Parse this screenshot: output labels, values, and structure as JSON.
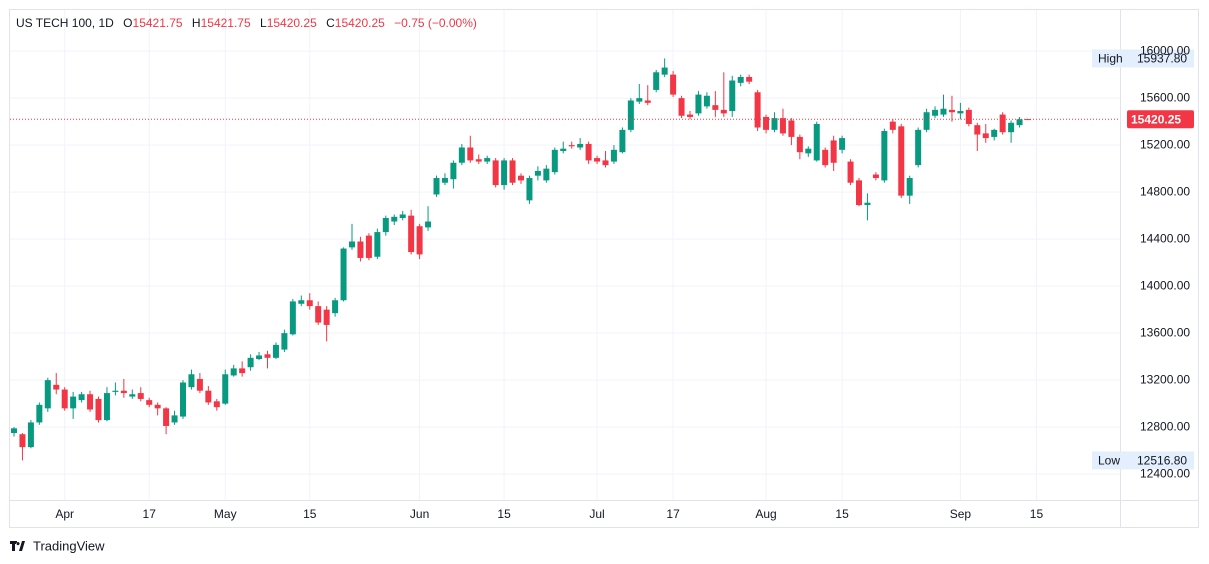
{
  "header": {
    "symbol": "US TECH 100, 1D",
    "fields": [
      {
        "label": "O",
        "value": "15421.75"
      },
      {
        "label": "H",
        "value": "15421.75"
      },
      {
        "label": "L",
        "value": "15420.25"
      },
      {
        "label": "C",
        "value": "15420.25"
      }
    ],
    "change": "−0.75 (−0.00%)"
  },
  "chart_data": {
    "type": "candlestick",
    "categories": [
      null,
      null,
      null,
      null,
      null,
      null,
      "Apr",
      null,
      null,
      null,
      null,
      null,
      null,
      null,
      null,
      null,
      "17",
      null,
      null,
      null,
      null,
      null,
      null,
      null,
      null,
      "May",
      null,
      null,
      null,
      null,
      null,
      null,
      null,
      null,
      null,
      "15",
      null,
      null,
      null,
      null,
      null,
      null,
      null,
      null,
      null,
      null,
      null,
      null,
      "Jun",
      null,
      null,
      null,
      null,
      null,
      null,
      null,
      null,
      null,
      "15",
      null,
      null,
      null,
      null,
      null,
      null,
      null,
      null,
      null,
      null,
      "Jul",
      null,
      null,
      null,
      null,
      null,
      null,
      null,
      null,
      "17",
      null,
      null,
      null,
      null,
      null,
      null,
      null,
      null,
      null,
      null,
      "Aug",
      null,
      null,
      null,
      null,
      null,
      null,
      null,
      null,
      "15",
      null,
      null,
      null,
      null,
      null,
      null,
      null,
      null,
      null,
      null,
      null,
      null,
      null,
      "Sep",
      null,
      null,
      null,
      null,
      null,
      null,
      null,
      null,
      "15"
    ],
    "candles": [
      [
        12750,
        12800,
        12720,
        12790
      ],
      [
        12740,
        12750,
        12516.8,
        12630
      ],
      [
        12630,
        12860,
        12620,
        12840
      ],
      [
        12840,
        13010,
        12820,
        12990
      ],
      [
        12960,
        13220,
        12930,
        13200
      ],
      [
        13160,
        13260,
        13080,
        13120
      ],
      [
        13120,
        13140,
        12940,
        12960
      ],
      [
        12960,
        13100,
        12870,
        13060
      ],
      [
        13030,
        13100,
        13010,
        13080
      ],
      [
        13080,
        13110,
        12930,
        12950
      ],
      [
        13040,
        13060,
        12840,
        12860
      ],
      [
        12860,
        13140,
        12850,
        13090
      ],
      [
        13100,
        13180,
        13070,
        13110
      ],
      [
        13110,
        13210,
        13050,
        13090
      ],
      [
        13060,
        13120,
        13040,
        13080
      ],
      [
        13090,
        13140,
        13020,
        13040
      ],
      [
        13030,
        13050,
        12970,
        12990
      ],
      [
        12990,
        13010,
        12900,
        12960
      ],
      [
        12960,
        12970,
        12740,
        12810
      ],
      [
        12840,
        12940,
        12820,
        12900
      ],
      [
        12890,
        13200,
        12870,
        13180
      ],
      [
        13140,
        13290,
        13120,
        13250
      ],
      [
        13210,
        13260,
        13090,
        13110
      ],
      [
        13110,
        13150,
        12990,
        13010
      ],
      [
        13020,
        13040,
        12940,
        12970
      ],
      [
        13000,
        13290,
        12990,
        13250
      ],
      [
        13240,
        13330,
        13230,
        13300
      ],
      [
        13300,
        13360,
        13230,
        13260
      ],
      [
        13310,
        13420,
        13280,
        13390
      ],
      [
        13380,
        13440,
        13370,
        13410
      ],
      [
        13420,
        13450,
        13300,
        13390
      ],
      [
        13390,
        13520,
        13380,
        13500
      ],
      [
        13460,
        13630,
        13440,
        13600
      ],
      [
        13590,
        13890,
        13580,
        13870
      ],
      [
        13850,
        13920,
        13830,
        13880
      ],
      [
        13880,
        13940,
        13800,
        13830
      ],
      [
        13830,
        13870,
        13670,
        13690
      ],
      [
        13800,
        13830,
        13530,
        13670
      ],
      [
        13770,
        13900,
        13740,
        13880
      ],
      [
        13880,
        14330,
        13870,
        14320
      ],
      [
        14330,
        14530,
        14310,
        14380
      ],
      [
        14380,
        14420,
        14210,
        14240
      ],
      [
        14430,
        14450,
        14220,
        14240
      ],
      [
        14250,
        14490,
        14230,
        14460
      ],
      [
        14460,
        14600,
        14430,
        14580
      ],
      [
        14550,
        14610,
        14520,
        14590
      ],
      [
        14580,
        14640,
        14560,
        14610
      ],
      [
        14600,
        14650,
        14270,
        14290
      ],
      [
        14510,
        14530,
        14230,
        14270
      ],
      [
        14500,
        14680,
        14470,
        14550
      ],
      [
        14780,
        14940,
        14760,
        14920
      ],
      [
        14880,
        14960,
        14860,
        14920
      ],
      [
        14910,
        15070,
        14830,
        15050
      ],
      [
        15050,
        15210,
        15030,
        15180
      ],
      [
        15180,
        15280,
        15050,
        15070
      ],
      [
        15080,
        15120,
        15040,
        15060
      ],
      [
        15060,
        15110,
        15040,
        15090
      ],
      [
        15070,
        15090,
        14840,
        14860
      ],
      [
        14860,
        15090,
        14820,
        15070
      ],
      [
        15070,
        15090,
        14860,
        14880
      ],
      [
        14940,
        14960,
        14870,
        14900
      ],
      [
        14730,
        14940,
        14700,
        14920
      ],
      [
        14940,
        15020,
        14900,
        14980
      ],
      [
        14900,
        15030,
        14880,
        15000
      ],
      [
        14970,
        15180,
        14950,
        15160
      ],
      [
        15150,
        15230,
        15130,
        15170
      ],
      [
        15200,
        15230,
        15170,
        15190
      ],
      [
        15180,
        15260,
        15160,
        15210
      ],
      [
        15210,
        15230,
        15040,
        15070
      ],
      [
        15090,
        15110,
        15040,
        15060
      ],
      [
        15070,
        15150,
        15010,
        15030
      ],
      [
        15060,
        15200,
        15040,
        15160
      ],
      [
        15140,
        15350,
        15130,
        15330
      ],
      [
        15330,
        15600,
        15310,
        15580
      ],
      [
        15570,
        15720,
        15550,
        15600
      ],
      [
        15580,
        15710,
        15540,
        15560
      ],
      [
        15670,
        15840,
        15650,
        15820
      ],
      [
        15800,
        15937.8,
        15780,
        15860
      ],
      [
        15800,
        15830,
        15610,
        15630
      ],
      [
        15600,
        15620,
        15430,
        15450
      ],
      [
        15460,
        15490,
        15420,
        15440
      ],
      [
        15470,
        15660,
        15450,
        15630
      ],
      [
        15530,
        15650,
        15510,
        15620
      ],
      [
        15540,
        15660,
        15440,
        15500
      ],
      [
        15500,
        15820,
        15440,
        15470
      ],
      [
        15490,
        15790,
        15440,
        15750
      ],
      [
        15730,
        15800,
        15700,
        15780
      ],
      [
        15780,
        15800,
        15720,
        15740
      ],
      [
        15650,
        15670,
        15320,
        15350
      ],
      [
        15440,
        15460,
        15300,
        15330
      ],
      [
        15330,
        15480,
        15310,
        15430
      ],
      [
        15430,
        15510,
        15280,
        15300
      ],
      [
        15410,
        15430,
        15200,
        15270
      ],
      [
        15270,
        15290,
        15080,
        15140
      ],
      [
        15130,
        15190,
        15100,
        15170
      ],
      [
        15070,
        15400,
        15060,
        15380
      ],
      [
        15160,
        15180,
        15010,
        15030
      ],
      [
        15240,
        15280,
        14980,
        15050
      ],
      [
        15160,
        15280,
        15130,
        15260
      ],
      [
        15060,
        15080,
        14860,
        14880
      ],
      [
        14900,
        14920,
        14680,
        14690
      ],
      [
        14690,
        14790,
        14560,
        14710
      ],
      [
        14950,
        14970,
        14900,
        14920
      ],
      [
        14900,
        15340,
        14880,
        15320
      ],
      [
        15400,
        15420,
        15300,
        15330
      ],
      [
        15360,
        15380,
        14750,
        14770
      ],
      [
        14770,
        14940,
        14700,
        14920
      ],
      [
        15030,
        15350,
        15010,
        15330
      ],
      [
        15330,
        15510,
        15310,
        15480
      ],
      [
        15450,
        15530,
        15430,
        15500
      ],
      [
        15460,
        15630,
        15440,
        15510
      ],
      [
        15500,
        15620,
        15400,
        15480
      ],
      [
        15470,
        15560,
        15420,
        15490
      ],
      [
        15500,
        15520,
        15360,
        15380
      ],
      [
        15370,
        15390,
        15150,
        15290
      ],
      [
        15300,
        15380,
        15220,
        15260
      ],
      [
        15270,
        15340,
        15240,
        15330
      ],
      [
        15460,
        15480,
        15290,
        15310
      ],
      [
        15310,
        15410,
        15220,
        15390
      ],
      [
        15370,
        15440,
        15350,
        15420
      ],
      [
        15421.75,
        15421.75,
        15420.25,
        15420.25
      ],
      null
    ],
    "up_color": "#089981",
    "down_color": "#f23645",
    "ylim": [
      12180,
      16350
    ],
    "yticks": [
      {
        "value": 12400,
        "label": "12400.00"
      },
      {
        "value": 12800,
        "label": "12800.00"
      },
      {
        "value": 13200,
        "label": "13200.00"
      },
      {
        "value": 13600,
        "label": "13600.00"
      },
      {
        "value": 14000,
        "label": "14000.00"
      },
      {
        "value": 14400,
        "label": "14400.00"
      },
      {
        "value": 14800,
        "label": "14800.00"
      },
      {
        "value": 15200,
        "label": "15200.00"
      },
      {
        "value": 15600,
        "label": "15600.00"
      },
      {
        "value": 16000,
        "label": "16000.00"
      }
    ],
    "grid": true,
    "markers": [
      {
        "name": "High",
        "value": 15937.8,
        "label": "15937.80"
      },
      {
        "name": "Low",
        "value": 12516.8,
        "label": "12516.80"
      }
    ],
    "last_price": {
      "value": 15420.25,
      "label": "15420.25"
    }
  },
  "footer": {
    "brand": "TradingView"
  }
}
